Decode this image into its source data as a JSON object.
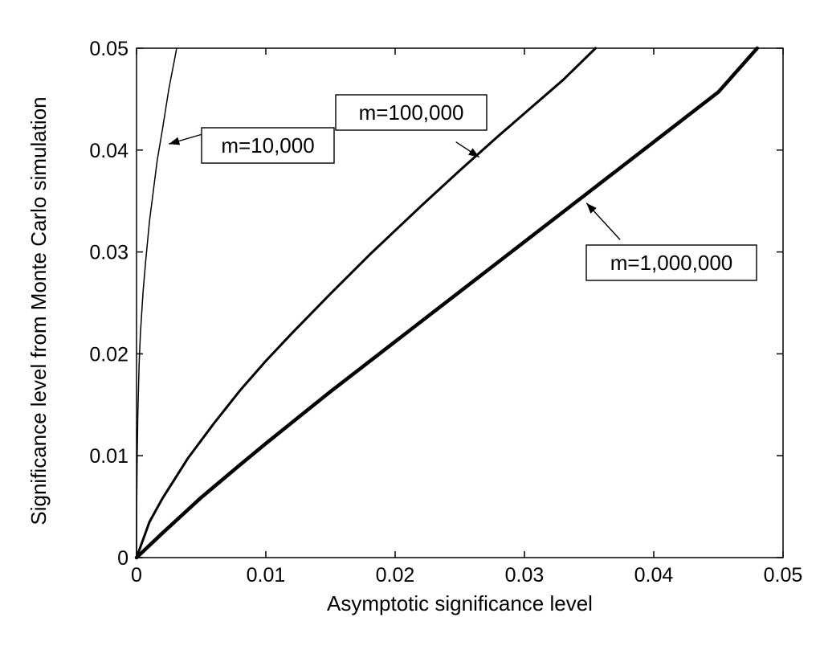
{
  "chart_data": {
    "type": "line",
    "xlabel": "Asymptotic significance level",
    "ylabel": "Significance level from Monte Carlo simulation",
    "xlim": [
      0,
      0.05
    ],
    "ylim": [
      0,
      0.05
    ],
    "xticks": [
      "0",
      "0.01",
      "0.02",
      "0.03",
      "0.04",
      "0.05"
    ],
    "yticks": [
      "0",
      "0.01",
      "0.02",
      "0.03",
      "0.04",
      "0.05"
    ],
    "grid": false,
    "series": [
      {
        "x": [
          0,
          2e-05,
          5e-05,
          0.0001,
          0.0002,
          0.0003,
          0.0005,
          0.0007,
          0.001,
          0.0013,
          0.0016,
          0.002,
          0.0025,
          0.003,
          0.0031
        ],
        "y": [
          0,
          0.006,
          0.01,
          0.014,
          0.019,
          0.022,
          0.026,
          0.029,
          0.033,
          0.036,
          0.039,
          0.042,
          0.046,
          0.0493,
          0.05
        ],
        "line_width": 1.5
      },
      {
        "x": [
          0,
          0.001,
          0.002,
          0.004,
          0.006,
          0.008,
          0.01,
          0.012,
          0.015,
          0.018,
          0.02,
          0.022,
          0.025,
          0.028,
          0.03,
          0.033,
          0.0355
        ],
        "y": [
          0,
          0.0035,
          0.0058,
          0.0098,
          0.0132,
          0.0164,
          0.0193,
          0.022,
          0.0259,
          0.0297,
          0.0321,
          0.0345,
          0.038,
          0.0414,
          0.0436,
          0.0469,
          0.05
        ],
        "line_width": 3
      },
      {
        "x": [
          0,
          0.002,
          0.005,
          0.008,
          0.01,
          0.015,
          0.02,
          0.025,
          0.03,
          0.035,
          0.04,
          0.045,
          0.048
        ],
        "y": [
          0,
          0.0024,
          0.0059,
          0.0091,
          0.0112,
          0.0163,
          0.0212,
          0.0261,
          0.031,
          0.0359,
          0.0408,
          0.0457,
          0.05
        ],
        "line_width": 4.5
      }
    ],
    "annotations": [
      {
        "text": "m=10,000",
        "arrow_to": [
          0.0025,
          0.0406
        ],
        "arrow_from": [
          0.0052,
          0.0416
        ]
      },
      {
        "text": "m=100,000",
        "arrow_to": [
          0.0265,
          0.0393
        ],
        "arrow_from": [
          0.0247,
          0.0408
        ]
      },
      {
        "text": "m=1,000,000",
        "arrow_to": [
          0.0348,
          0.0348
        ],
        "arrow_from": [
          0.0374,
          0.0312
        ]
      }
    ]
  }
}
